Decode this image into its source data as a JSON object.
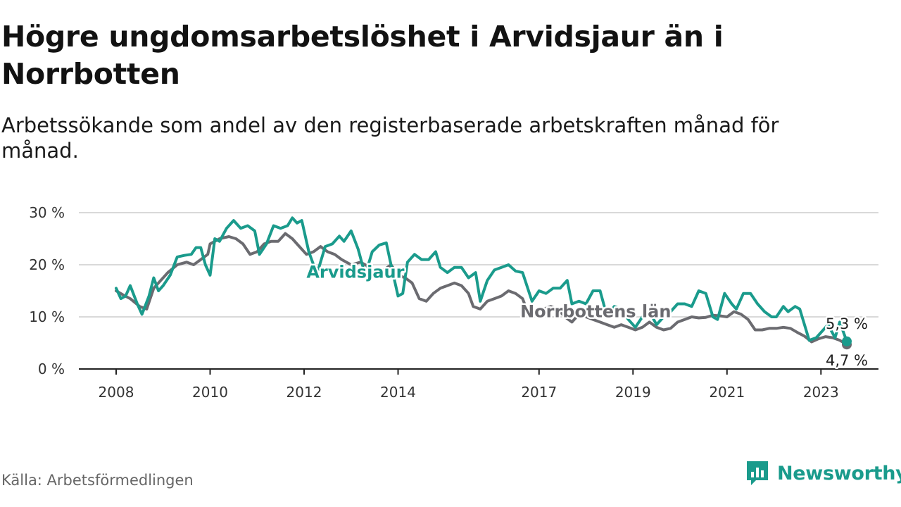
{
  "header": {
    "title": "Högre ungdomsarbetslöshet i Arvidsjaur än i Norrbotten",
    "subtitle": "Arbetssökande som andel av den registerbaserade arbetskraften månad för månad."
  },
  "footer": {
    "source": "Källa: Arbetsförmedlingen",
    "brand": "Newsworthy"
  },
  "colors": {
    "arvidsjaur": "#1a9b8c",
    "norrbotten": "#6b6b70",
    "grid": "#d9d9d9",
    "axis": "#222222",
    "brand": "#1a9b8c"
  },
  "icons": {
    "brand": "newsworthy-logo-icon"
  },
  "chart_data": {
    "type": "line",
    "title": "Högre ungdomsarbetslöshet i Arvidsjaur än i Norrbotten",
    "xlabel": "",
    "ylabel": "",
    "x_unit": "year",
    "x_range": [
      2008,
      2023.55
    ],
    "ylim": [
      0,
      30
    ],
    "y_ticks": [
      {
        "value": 0,
        "label": "0 %"
      },
      {
        "value": 10,
        "label": "10 %"
      },
      {
        "value": 20,
        "label": "20 %"
      },
      {
        "value": 30,
        "label": "30 %"
      }
    ],
    "x_ticks": [
      {
        "value": 2008,
        "label": "2008"
      },
      {
        "value": 2010,
        "label": "2010"
      },
      {
        "value": 2012,
        "label": "2012"
      },
      {
        "value": 2014,
        "label": "2014"
      },
      {
        "value": 2017,
        "label": "2017"
      },
      {
        "value": 2019,
        "label": "2019"
      },
      {
        "value": 2021,
        "label": "2021"
      },
      {
        "value": 2023,
        "label": "2023"
      }
    ],
    "grid": true,
    "series": [
      {
        "name": "Norrbottens län",
        "label": "Norrbottens län",
        "label_at": [
          2016.6,
          9.9
        ],
        "end_label": "4,7 %",
        "end_value": 4.7,
        "points": [
          [
            2008.0,
            15.0
          ],
          [
            2008.15,
            14.2
          ],
          [
            2008.3,
            13.5
          ],
          [
            2008.5,
            12.0
          ],
          [
            2008.65,
            11.5
          ],
          [
            2008.8,
            15.5
          ],
          [
            2008.95,
            17.0
          ],
          [
            2009.1,
            18.5
          ],
          [
            2009.3,
            20.0
          ],
          [
            2009.5,
            20.5
          ],
          [
            2009.65,
            20.0
          ],
          [
            2009.8,
            21.0
          ],
          [
            2009.95,
            22.0
          ],
          [
            2010.0,
            24.0
          ],
          [
            2010.2,
            25.0
          ],
          [
            2010.4,
            25.4
          ],
          [
            2010.55,
            25.0
          ],
          [
            2010.7,
            24.0
          ],
          [
            2010.85,
            22.0
          ],
          [
            2011.0,
            22.5
          ],
          [
            2011.15,
            24.0
          ],
          [
            2011.3,
            24.5
          ],
          [
            2011.45,
            24.5
          ],
          [
            2011.6,
            26.0
          ],
          [
            2011.75,
            25.0
          ],
          [
            2011.9,
            23.5
          ],
          [
            2012.05,
            22.0
          ],
          [
            2012.2,
            22.5
          ],
          [
            2012.35,
            23.5
          ],
          [
            2012.5,
            22.5
          ],
          [
            2012.65,
            22.0
          ],
          [
            2012.8,
            21.0
          ],
          [
            2013.0,
            20.0
          ],
          [
            2013.2,
            20.5
          ],
          [
            2013.4,
            19.5
          ],
          [
            2013.55,
            18.0
          ],
          [
            2013.7,
            19.0
          ],
          [
            2013.85,
            20.0
          ],
          [
            2014.0,
            18.0
          ],
          [
            2014.15,
            17.5
          ],
          [
            2014.3,
            16.5
          ],
          [
            2014.45,
            13.5
          ],
          [
            2014.6,
            13.0
          ],
          [
            2014.75,
            14.5
          ],
          [
            2014.9,
            15.5
          ],
          [
            2015.05,
            16.0
          ],
          [
            2015.2,
            16.5
          ],
          [
            2015.35,
            16.0
          ],
          [
            2015.5,
            14.5
          ],
          [
            2015.6,
            12.0
          ],
          [
            2015.75,
            11.5
          ],
          [
            2015.9,
            13.0
          ],
          [
            2016.05,
            13.5
          ],
          [
            2016.2,
            14.0
          ],
          [
            2016.35,
            15.0
          ],
          [
            2016.5,
            14.5
          ],
          [
            2016.65,
            13.5
          ],
          [
            2016.8,
            10.0
          ],
          [
            2016.95,
            11.0
          ],
          [
            2017.1,
            11.5
          ],
          [
            2017.25,
            12.0
          ],
          [
            2017.4,
            11.5
          ],
          [
            2017.55,
            10.0
          ],
          [
            2017.7,
            9.0
          ],
          [
            2017.85,
            10.5
          ],
          [
            2018.0,
            10.0
          ],
          [
            2018.15,
            9.5
          ],
          [
            2018.3,
            9.0
          ],
          [
            2018.45,
            8.5
          ],
          [
            2018.6,
            8.0
          ],
          [
            2018.75,
            8.5
          ],
          [
            2018.9,
            8.0
          ],
          [
            2019.05,
            7.5
          ],
          [
            2019.2,
            8.0
          ],
          [
            2019.35,
            9.0
          ],
          [
            2019.5,
            8.0
          ],
          [
            2019.65,
            7.5
          ],
          [
            2019.8,
            7.8
          ],
          [
            2019.95,
            9.0
          ],
          [
            2020.1,
            9.5
          ],
          [
            2020.25,
            10.0
          ],
          [
            2020.4,
            9.8
          ],
          [
            2020.55,
            9.9
          ],
          [
            2020.7,
            10.3
          ],
          [
            2020.85,
            10.2
          ],
          [
            2021.0,
            10.0
          ],
          [
            2021.15,
            11.0
          ],
          [
            2021.3,
            10.5
          ],
          [
            2021.45,
            9.5
          ],
          [
            2021.6,
            7.5
          ],
          [
            2021.75,
            7.5
          ],
          [
            2021.9,
            7.8
          ],
          [
            2022.05,
            7.8
          ],
          [
            2022.2,
            8.0
          ],
          [
            2022.35,
            7.8
          ],
          [
            2022.5,
            7.0
          ],
          [
            2022.65,
            6.3
          ],
          [
            2022.8,
            5.2
          ],
          [
            2022.95,
            5.8
          ],
          [
            2023.1,
            6.2
          ],
          [
            2023.25,
            6.0
          ],
          [
            2023.4,
            5.5
          ],
          [
            2023.55,
            4.7
          ]
        ]
      },
      {
        "name": "Arvidsjaur",
        "label": "Arvidsjaur",
        "label_at": [
          2012.05,
          17.5
        ],
        "end_label": "5,3 %",
        "end_value": 5.3,
        "points": [
          [
            2008.0,
            15.5
          ],
          [
            2008.1,
            13.5
          ],
          [
            2008.2,
            14.0
          ],
          [
            2008.3,
            16.0
          ],
          [
            2008.45,
            12.5
          ],
          [
            2008.55,
            10.5
          ],
          [
            2008.7,
            14.0
          ],
          [
            2008.8,
            17.5
          ],
          [
            2008.9,
            15.0
          ],
          [
            2009.0,
            16.0
          ],
          [
            2009.15,
            18.0
          ],
          [
            2009.3,
            21.5
          ],
          [
            2009.45,
            21.8
          ],
          [
            2009.6,
            22.0
          ],
          [
            2009.7,
            23.3
          ],
          [
            2009.8,
            23.3
          ],
          [
            2009.9,
            20.0
          ],
          [
            2010.0,
            18.0
          ],
          [
            2010.1,
            25.0
          ],
          [
            2010.2,
            24.5
          ],
          [
            2010.35,
            27.0
          ],
          [
            2010.5,
            28.5
          ],
          [
            2010.65,
            27.0
          ],
          [
            2010.8,
            27.5
          ],
          [
            2010.95,
            26.5
          ],
          [
            2011.05,
            22.0
          ],
          [
            2011.2,
            24.0
          ],
          [
            2011.35,
            27.5
          ],
          [
            2011.5,
            27.0
          ],
          [
            2011.65,
            27.5
          ],
          [
            2011.75,
            29.0
          ],
          [
            2011.85,
            28.0
          ],
          [
            2011.95,
            28.5
          ],
          [
            2012.1,
            22.5
          ],
          [
            2012.2,
            20.0
          ],
          [
            2012.3,
            19.0
          ],
          [
            2012.45,
            23.5
          ],
          [
            2012.6,
            24.0
          ],
          [
            2012.75,
            25.5
          ],
          [
            2012.85,
            24.5
          ],
          [
            2013.0,
            26.5
          ],
          [
            2013.15,
            23.0
          ],
          [
            2013.3,
            18.0
          ],
          [
            2013.45,
            22.5
          ],
          [
            2013.6,
            23.8
          ],
          [
            2013.75,
            24.2
          ],
          [
            2013.85,
            20.0
          ],
          [
            2014.0,
            14.0
          ],
          [
            2014.1,
            14.5
          ],
          [
            2014.2,
            20.5
          ],
          [
            2014.35,
            22.0
          ],
          [
            2014.5,
            21.0
          ],
          [
            2014.65,
            21.0
          ],
          [
            2014.8,
            22.5
          ],
          [
            2014.9,
            19.5
          ],
          [
            2015.05,
            18.5
          ],
          [
            2015.2,
            19.5
          ],
          [
            2015.35,
            19.5
          ],
          [
            2015.5,
            17.5
          ],
          [
            2015.65,
            18.5
          ],
          [
            2015.75,
            13.0
          ],
          [
            2015.9,
            17.0
          ],
          [
            2016.05,
            19.0
          ],
          [
            2016.2,
            19.5
          ],
          [
            2016.35,
            20.0
          ],
          [
            2016.5,
            18.8
          ],
          [
            2016.65,
            18.5
          ],
          [
            2016.85,
            13.0
          ],
          [
            2017.0,
            15.0
          ],
          [
            2017.15,
            14.5
          ],
          [
            2017.3,
            15.5
          ],
          [
            2017.45,
            15.5
          ],
          [
            2017.6,
            17.0
          ],
          [
            2017.7,
            12.5
          ],
          [
            2017.85,
            13.0
          ],
          [
            2018.0,
            12.5
          ],
          [
            2018.15,
            15.0
          ],
          [
            2018.3,
            15.0
          ],
          [
            2018.45,
            10.0
          ],
          [
            2018.6,
            12.0
          ],
          [
            2018.75,
            11.5
          ],
          [
            2018.9,
            9.5
          ],
          [
            2019.05,
            8.0
          ],
          [
            2019.2,
            10.0
          ],
          [
            2019.35,
            11.0
          ],
          [
            2019.5,
            8.5
          ],
          [
            2019.65,
            10.0
          ],
          [
            2019.8,
            11.0
          ],
          [
            2019.95,
            12.5
          ],
          [
            2020.1,
            12.5
          ],
          [
            2020.25,
            12.0
          ],
          [
            2020.4,
            15.0
          ],
          [
            2020.55,
            14.5
          ],
          [
            2020.7,
            10.0
          ],
          [
            2020.8,
            9.5
          ],
          [
            2020.95,
            14.5
          ],
          [
            2021.1,
            12.5
          ],
          [
            2021.2,
            11.5
          ],
          [
            2021.35,
            14.5
          ],
          [
            2021.5,
            14.5
          ],
          [
            2021.65,
            12.5
          ],
          [
            2021.8,
            11.0
          ],
          [
            2021.95,
            10.0
          ],
          [
            2022.05,
            10.0
          ],
          [
            2022.2,
            12.0
          ],
          [
            2022.3,
            11.0
          ],
          [
            2022.45,
            12.0
          ],
          [
            2022.55,
            11.5
          ],
          [
            2022.75,
            5.5
          ],
          [
            2022.9,
            6.0
          ],
          [
            2023.05,
            7.5
          ],
          [
            2023.15,
            8.5
          ],
          [
            2023.3,
            6.0
          ],
          [
            2023.4,
            9.0
          ],
          [
            2023.55,
            5.3
          ]
        ]
      }
    ]
  }
}
